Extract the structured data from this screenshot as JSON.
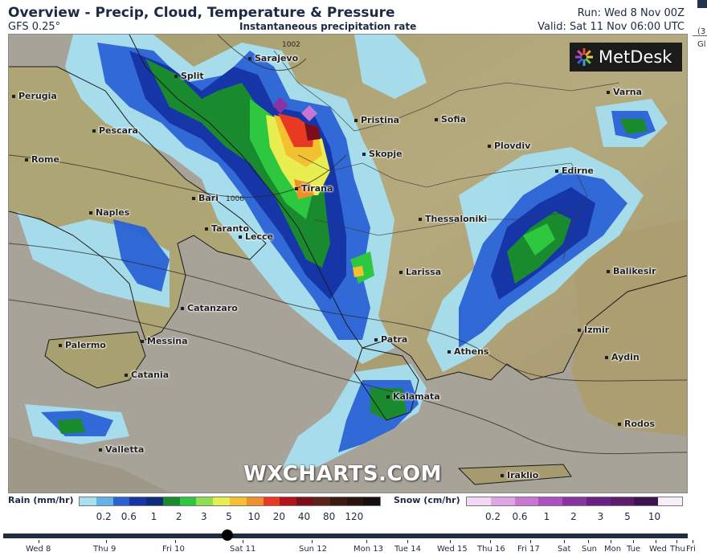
{
  "header": {
    "title": "Overview - Precip, Cloud, Temperature & Pressure",
    "model": "GFS 0.25°",
    "field": "Instantaneous precipitation rate",
    "run": "Run: Wed 8 Nov 00Z",
    "valid": "Valid: Sat 11 Nov 06:00 UTC"
  },
  "side_fragments": {
    "a": "(3",
    "b": "Gl"
  },
  "brand": {
    "logo_text": "MetDesk",
    "watermark": "WXCHARTS.COM"
  },
  "map": {
    "cities": [
      "Sarajevo",
      "Split",
      "Perugia",
      "Pescara",
      "Rome",
      "Bari",
      "Naples",
      "Taranto",
      "Lecce",
      "Catanzaro",
      "Palermo",
      "Messina",
      "Catania",
      "Valletta",
      "Pristina",
      "Sofia",
      "Skopje",
      "Tirana",
      "Plovdiv",
      "Varna",
      "Edirne",
      "Thessaloniki",
      "Larissa",
      "Balikesir",
      "Izmir",
      "Aydin",
      "Patra",
      "Athens",
      "Kalamata",
      "Rodos",
      "Iraklio"
    ],
    "isobars": [
      "1002",
      "1006"
    ]
  },
  "legend": {
    "rain": {
      "label": "Rain (mm/hr)",
      "ticks": [
        "0.2",
        "0.6",
        "1",
        "2",
        "3",
        "5",
        "10",
        "20",
        "40",
        "80",
        "120"
      ],
      "colors": [
        "#a6dff0",
        "#5fb3e8",
        "#2a62d6",
        "#1636a8",
        "#0f2c7a",
        "#1a8a2e",
        "#2ec840",
        "#8fe050",
        "#e8ee50",
        "#f4c030",
        "#f0902a",
        "#e83a22",
        "#b5141c",
        "#7a0e1a",
        "#5a2418",
        "#3e1a14",
        "#2a1410",
        "#181010"
      ]
    },
    "snow": {
      "label": "Snow (cm/hr)",
      "ticks": [
        "0.2",
        "0.6",
        "1",
        "2",
        "3",
        "5",
        "10"
      ],
      "colors": [
        "#f3d7f4",
        "#dfa6e6",
        "#c777d2",
        "#ad4fc0",
        "#8b33a4",
        "#6a2182",
        "#5a1d6e",
        "#3e1450",
        "#f8eef8"
      ]
    }
  },
  "timeline": {
    "days": [
      "Wed 8",
      "Thu 9",
      "Fri 10",
      "Sat 11",
      "Sun 12",
      "Mon 13",
      "Tue 14",
      "Wed 15",
      "Thu 16",
      "Fri 17",
      "Sat",
      "Sun",
      "Mon",
      "Tue",
      "Wed",
      "Thu",
      "Fri"
    ],
    "selected": "Sat 11"
  }
}
